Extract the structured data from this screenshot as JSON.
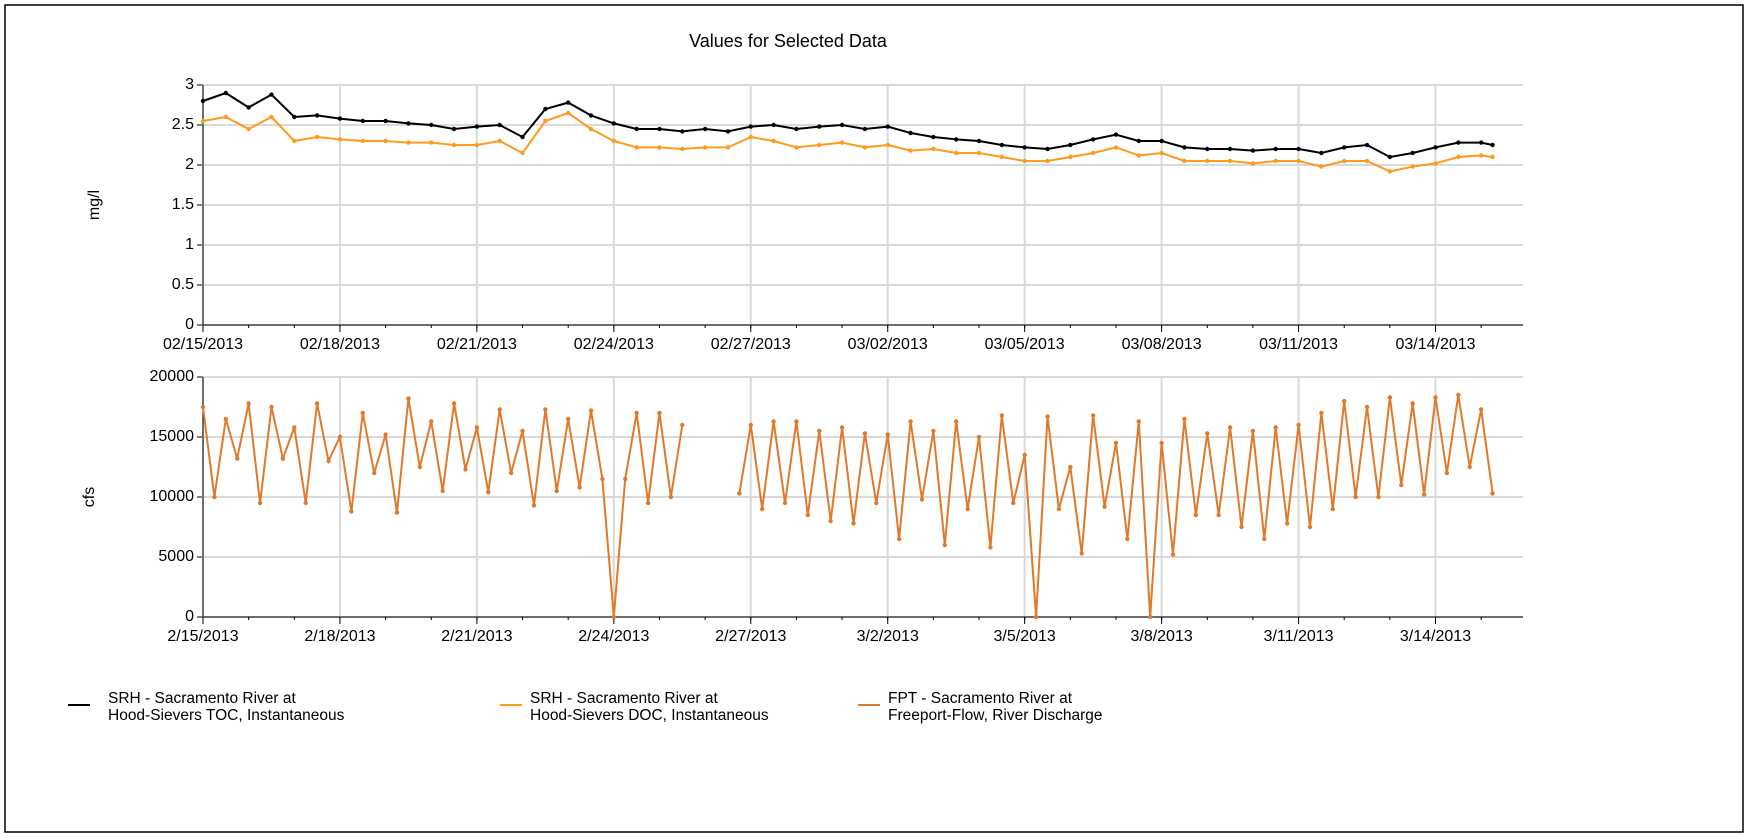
{
  "chart_data": [
    {
      "type": "line",
      "title": "Values for Selected Data",
      "ylabel": "mg/l",
      "xlim": [
        "2013-02-15T00:00",
        "2013-03-15T22:00"
      ],
      "xticks": [
        {
          "value": "2013-02-15T00:00",
          "label": "02/15/2013"
        },
        {
          "value": "2013-02-18T00:00",
          "label": "02/18/2013"
        },
        {
          "value": "2013-02-21T00:00",
          "label": "02/21/2013"
        },
        {
          "value": "2013-02-24T00:00",
          "label": "02/24/2013"
        },
        {
          "value": "2013-02-27T00:00",
          "label": "02/27/2013"
        },
        {
          "value": "2013-03-02T00:00",
          "label": "03/02/2013"
        },
        {
          "value": "2013-03-05T00:00",
          "label": "03/05/2013"
        },
        {
          "value": "2013-03-08T00:00",
          "label": "03/08/2013"
        },
        {
          "value": "2013-03-11T00:00",
          "label": "03/11/2013"
        },
        {
          "value": "2013-03-14T00:00",
          "label": "03/14/2013"
        }
      ],
      "ylim": [
        0,
        3
      ],
      "yticks": [
        0,
        0.5,
        1,
        1.5,
        2,
        2.5,
        3
      ],
      "grid": true,
      "series": [
        {
          "name": "SRH - Sacramento River at\nHood-Sievers TOC, Instantaneous",
          "color": "#000000",
          "x": [
            "2013-02-15T00:00",
            "2013-02-15T12:00",
            "2013-02-16T00:00",
            "2013-02-16T12:00",
            "2013-02-17T00:00",
            "2013-02-17T12:00",
            "2013-02-18T00:00",
            "2013-02-18T12:00",
            "2013-02-19T00:00",
            "2013-02-19T12:00",
            "2013-02-20T00:00",
            "2013-02-20T12:00",
            "2013-02-21T00:00",
            "2013-02-21T12:00",
            "2013-02-22T00:00",
            "2013-02-22T12:00",
            "2013-02-23T00:00",
            "2013-02-23T12:00",
            "2013-02-24T00:00",
            "2013-02-24T12:00",
            "2013-02-25T00:00",
            "2013-02-25T12:00",
            "2013-02-26T00:00",
            "2013-02-26T12:00",
            "2013-02-27T00:00",
            "2013-02-27T12:00",
            "2013-02-28T00:00",
            "2013-02-28T12:00",
            "2013-03-01T00:00",
            "2013-03-01T12:00",
            "2013-03-02T00:00",
            "2013-03-02T12:00",
            "2013-03-03T00:00",
            "2013-03-03T12:00",
            "2013-03-04T00:00",
            "2013-03-04T12:00",
            "2013-03-05T00:00",
            "2013-03-05T12:00",
            "2013-03-06T00:00",
            "2013-03-06T12:00",
            "2013-03-07T00:00",
            "2013-03-07T12:00",
            "2013-03-08T00:00",
            "2013-03-08T12:00",
            "2013-03-09T00:00",
            "2013-03-09T12:00",
            "2013-03-10T00:00",
            "2013-03-10T12:00",
            "2013-03-11T00:00",
            "2013-03-11T12:00",
            "2013-03-12T00:00",
            "2013-03-12T12:00",
            "2013-03-13T00:00",
            "2013-03-13T12:00",
            "2013-03-14T00:00",
            "2013-03-14T12:00",
            "2013-03-15T00:00",
            "2013-03-15T06:00"
          ],
          "values": [
            2.8,
            2.9,
            2.72,
            2.88,
            2.6,
            2.62,
            2.58,
            2.55,
            2.55,
            2.52,
            2.5,
            2.45,
            2.48,
            2.5,
            2.35,
            2.7,
            2.78,
            2.62,
            2.52,
            2.45,
            2.45,
            2.42,
            2.45,
            2.42,
            2.48,
            2.5,
            2.45,
            2.48,
            2.5,
            2.45,
            2.48,
            2.4,
            2.35,
            2.32,
            2.3,
            2.25,
            2.22,
            2.2,
            2.25,
            2.32,
            2.38,
            2.3,
            2.3,
            2.22,
            2.2,
            2.2,
            2.18,
            2.2,
            2.2,
            2.15,
            2.22,
            2.25,
            2.1,
            2.15,
            2.22,
            2.28,
            2.28,
            2.25
          ]
        },
        {
          "name": "SRH - Sacramento River at\nHood-Sievers DOC, Instantaneous",
          "color": "#ff9a1c",
          "x": [
            "2013-02-15T00:00",
            "2013-02-15T12:00",
            "2013-02-16T00:00",
            "2013-02-16T12:00",
            "2013-02-17T00:00",
            "2013-02-17T12:00",
            "2013-02-18T00:00",
            "2013-02-18T12:00",
            "2013-02-19T00:00",
            "2013-02-19T12:00",
            "2013-02-20T00:00",
            "2013-02-20T12:00",
            "2013-02-21T00:00",
            "2013-02-21T12:00",
            "2013-02-22T00:00",
            "2013-02-22T12:00",
            "2013-02-23T00:00",
            "2013-02-23T12:00",
            "2013-02-24T00:00",
            "2013-02-24T12:00",
            "2013-02-25T00:00",
            "2013-02-25T12:00",
            "2013-02-26T00:00",
            "2013-02-26T12:00",
            "2013-02-27T00:00",
            "2013-02-27T12:00",
            "2013-02-28T00:00",
            "2013-02-28T12:00",
            "2013-03-01T00:00",
            "2013-03-01T12:00",
            "2013-03-02T00:00",
            "2013-03-02T12:00",
            "2013-03-03T00:00",
            "2013-03-03T12:00",
            "2013-03-04T00:00",
            "2013-03-04T12:00",
            "2013-03-05T00:00",
            "2013-03-05T12:00",
            "2013-03-06T00:00",
            "2013-03-06T12:00",
            "2013-03-07T00:00",
            "2013-03-07T12:00",
            "2013-03-08T00:00",
            "2013-03-08T12:00",
            "2013-03-09T00:00",
            "2013-03-09T12:00",
            "2013-03-10T00:00",
            "2013-03-10T12:00",
            "2013-03-11T00:00",
            "2013-03-11T12:00",
            "2013-03-12T00:00",
            "2013-03-12T12:00",
            "2013-03-13T00:00",
            "2013-03-13T12:00",
            "2013-03-14T00:00",
            "2013-03-14T12:00",
            "2013-03-15T00:00",
            "2013-03-15T06:00"
          ],
          "values": [
            2.55,
            2.6,
            2.45,
            2.6,
            2.3,
            2.35,
            2.32,
            2.3,
            2.3,
            2.28,
            2.28,
            2.25,
            2.25,
            2.3,
            2.15,
            2.55,
            2.65,
            2.45,
            2.3,
            2.22,
            2.22,
            2.2,
            2.22,
            2.22,
            2.35,
            2.3,
            2.22,
            2.25,
            2.28,
            2.22,
            2.25,
            2.18,
            2.2,
            2.15,
            2.15,
            2.1,
            2.05,
            2.05,
            2.1,
            2.15,
            2.22,
            2.12,
            2.15,
            2.05,
            2.05,
            2.05,
            2.02,
            2.05,
            2.05,
            1.98,
            2.05,
            2.05,
            1.92,
            1.98,
            2.02,
            2.1,
            2.12,
            2.1
          ]
        }
      ]
    },
    {
      "type": "line",
      "ylabel": "cfs",
      "xlim": [
        "2013-02-15T00:00",
        "2013-03-15T22:00"
      ],
      "xticks": [
        {
          "value": "2013-02-15T00:00",
          "label": "2/15/2013"
        },
        {
          "value": "2013-02-18T00:00",
          "label": "2/18/2013"
        },
        {
          "value": "2013-02-21T00:00",
          "label": "2/21/2013"
        },
        {
          "value": "2013-02-24T00:00",
          "label": "2/24/2013"
        },
        {
          "value": "2013-02-27T00:00",
          "label": "2/27/2013"
        },
        {
          "value": "2013-03-02T00:00",
          "label": "3/2/2013"
        },
        {
          "value": "2013-03-05T00:00",
          "label": "3/5/2013"
        },
        {
          "value": "2013-03-08T00:00",
          "label": "3/8/2013"
        },
        {
          "value": "2013-03-11T00:00",
          "label": "3/11/2013"
        },
        {
          "value": "2013-03-14T00:00",
          "label": "3/14/2013"
        }
      ],
      "ylim": [
        0,
        20000
      ],
      "yticks": [
        0,
        5000,
        10000,
        15000,
        20000
      ],
      "grid": true,
      "series": [
        {
          "name": "FPT - Sacramento River at\nFreeport-Flow, River Discharge",
          "color": "#e0792a",
          "x": [
            "2013-02-15T00:00",
            "2013-02-15T06:00",
            "2013-02-15T12:00",
            "2013-02-15T18:00",
            "2013-02-16T00:00",
            "2013-02-16T06:00",
            "2013-02-16T12:00",
            "2013-02-16T18:00",
            "2013-02-17T00:00",
            "2013-02-17T06:00",
            "2013-02-17T12:00",
            "2013-02-17T18:00",
            "2013-02-18T00:00",
            "2013-02-18T06:00",
            "2013-02-18T12:00",
            "2013-02-18T18:00",
            "2013-02-19T00:00",
            "2013-02-19T06:00",
            "2013-02-19T12:00",
            "2013-02-19T18:00",
            "2013-02-20T00:00",
            "2013-02-20T06:00",
            "2013-02-20T12:00",
            "2013-02-20T18:00",
            "2013-02-21T00:00",
            "2013-02-21T06:00",
            "2013-02-21T12:00",
            "2013-02-21T18:00",
            "2013-02-22T00:00",
            "2013-02-22T06:00",
            "2013-02-22T12:00",
            "2013-02-22T18:00",
            "2013-02-23T00:00",
            "2013-02-23T06:00",
            "2013-02-23T12:00",
            "2013-02-23T18:00",
            "2013-02-24T00:00",
            "2013-02-24T06:00",
            "2013-02-24T12:00",
            "2013-02-24T18:00",
            "2013-02-25T00:00",
            "2013-02-25T06:00",
            "2013-02-25T12:00",
            "2013-02-25T18:00",
            "2013-02-26T00:00",
            "2013-02-26T06:00",
            "2013-02-26T12:00",
            "2013-02-26T18:00",
            "2013-02-27T00:00",
            "2013-02-27T06:00",
            "2013-02-27T12:00",
            "2013-02-27T18:00",
            "2013-02-28T00:00",
            "2013-02-28T06:00",
            "2013-02-28T12:00",
            "2013-02-28T18:00",
            "2013-03-01T00:00",
            "2013-03-01T06:00",
            "2013-03-01T12:00",
            "2013-03-01T18:00",
            "2013-03-02T00:00",
            "2013-03-02T06:00",
            "2013-03-02T12:00",
            "2013-03-02T18:00",
            "2013-03-03T00:00",
            "2013-03-03T06:00",
            "2013-03-03T12:00",
            "2013-03-03T18:00",
            "2013-03-04T00:00",
            "2013-03-04T06:00",
            "2013-03-04T12:00",
            "2013-03-04T18:00",
            "2013-03-05T00:00",
            "2013-03-05T06:00",
            "2013-03-05T12:00",
            "2013-03-05T18:00",
            "2013-03-06T00:00",
            "2013-03-06T06:00",
            "2013-03-06T12:00",
            "2013-03-06T18:00",
            "2013-03-07T00:00",
            "2013-03-07T06:00",
            "2013-03-07T12:00",
            "2013-03-07T18:00",
            "2013-03-08T00:00",
            "2013-03-08T06:00",
            "2013-03-08T12:00",
            "2013-03-08T18:00",
            "2013-03-09T00:00",
            "2013-03-09T06:00",
            "2013-03-09T12:00",
            "2013-03-09T18:00",
            "2013-03-10T00:00",
            "2013-03-10T06:00",
            "2013-03-10T12:00",
            "2013-03-10T18:00",
            "2013-03-11T00:00",
            "2013-03-11T06:00",
            "2013-03-11T12:00",
            "2013-03-11T18:00",
            "2013-03-12T00:00",
            "2013-03-12T06:00",
            "2013-03-12T12:00",
            "2013-03-12T18:00",
            "2013-03-13T00:00",
            "2013-03-13T06:00",
            "2013-03-13T12:00",
            "2013-03-13T18:00",
            "2013-03-14T00:00",
            "2013-03-14T06:00",
            "2013-03-14T12:00",
            "2013-03-14T18:00",
            "2013-03-15T00:00",
            "2013-03-15T06:00"
          ],
          "values": [
            17500,
            10000,
            16500,
            13200,
            17800,
            9500,
            17500,
            13200,
            15800,
            9500,
            17800,
            13000,
            15000,
            8800,
            17000,
            12000,
            15200,
            8700,
            18200,
            12500,
            16300,
            10500,
            17800,
            12300,
            15800,
            10400,
            17300,
            12000,
            15500,
            9300,
            17300,
            10500,
            16500,
            10800,
            17200,
            11500,
            0,
            11500,
            17000,
            9500,
            17000,
            10000,
            16000,
            null,
            null,
            null,
            null,
            10300,
            16000,
            9000,
            16300,
            9500,
            16300,
            8500,
            15500,
            8000,
            15800,
            7800,
            15300,
            9500,
            15200,
            6500,
            16300,
            9800,
            15500,
            6000,
            16300,
            9000,
            15000,
            5800,
            16800,
            9500,
            13500,
            0,
            16700,
            9000,
            12500,
            5300,
            16800,
            9200,
            14500,
            6500,
            16300,
            0,
            14500,
            5200,
            16500,
            8500,
            15300,
            8500,
            15800,
            7500,
            15500,
            6500,
            15800,
            7800,
            16000,
            7500,
            17000,
            9000,
            18000,
            10000,
            17500,
            10000,
            18300,
            11000,
            17800,
            10200,
            18300,
            12000,
            18500,
            12500,
            17300,
            10300
          ]
        }
      ]
    }
  ]
}
